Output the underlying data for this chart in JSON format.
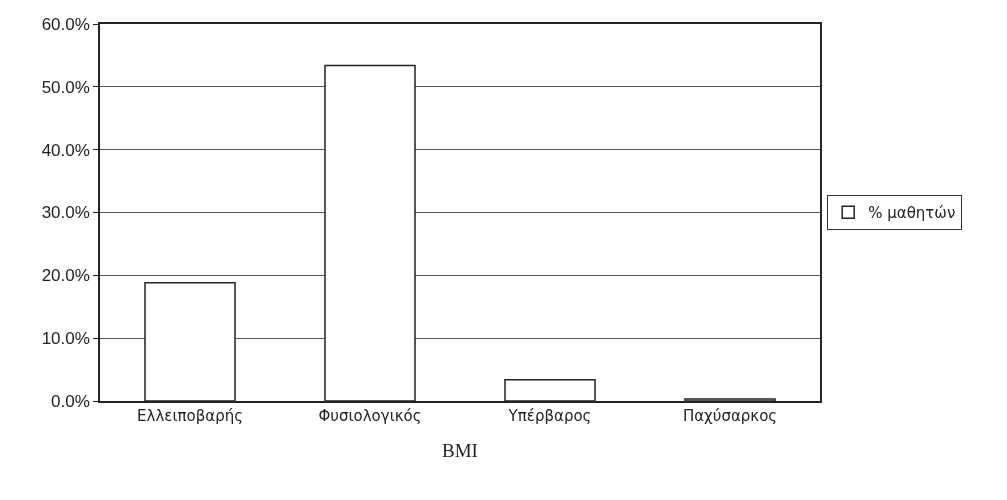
{
  "chart_data": {
    "type": "bar",
    "xlabel": "BMI",
    "categories": [
      "Ελλειποβαρής",
      "Φυσιολογικός",
      "Υπέρβαρος",
      "Παχύσαρκος"
    ],
    "series": [
      {
        "name": "% μαθητών",
        "color": "#ffffff",
        "values": [
          18.8,
          53.4,
          3.4,
          0.3
        ]
      }
    ],
    "ylim": [
      0,
      60
    ],
    "yticks": [
      {
        "value": 0,
        "label": "0.0%"
      },
      {
        "value": 10,
        "label": "10.0%"
      },
      {
        "value": 20,
        "label": "20.0%"
      },
      {
        "value": 30,
        "label": "30.0%"
      },
      {
        "value": 40,
        "label": "40.0%"
      },
      {
        "value": 50,
        "label": "50.0%"
      },
      {
        "value": 60,
        "label": "60.0%"
      }
    ],
    "grid": "y",
    "legend": "right"
  }
}
